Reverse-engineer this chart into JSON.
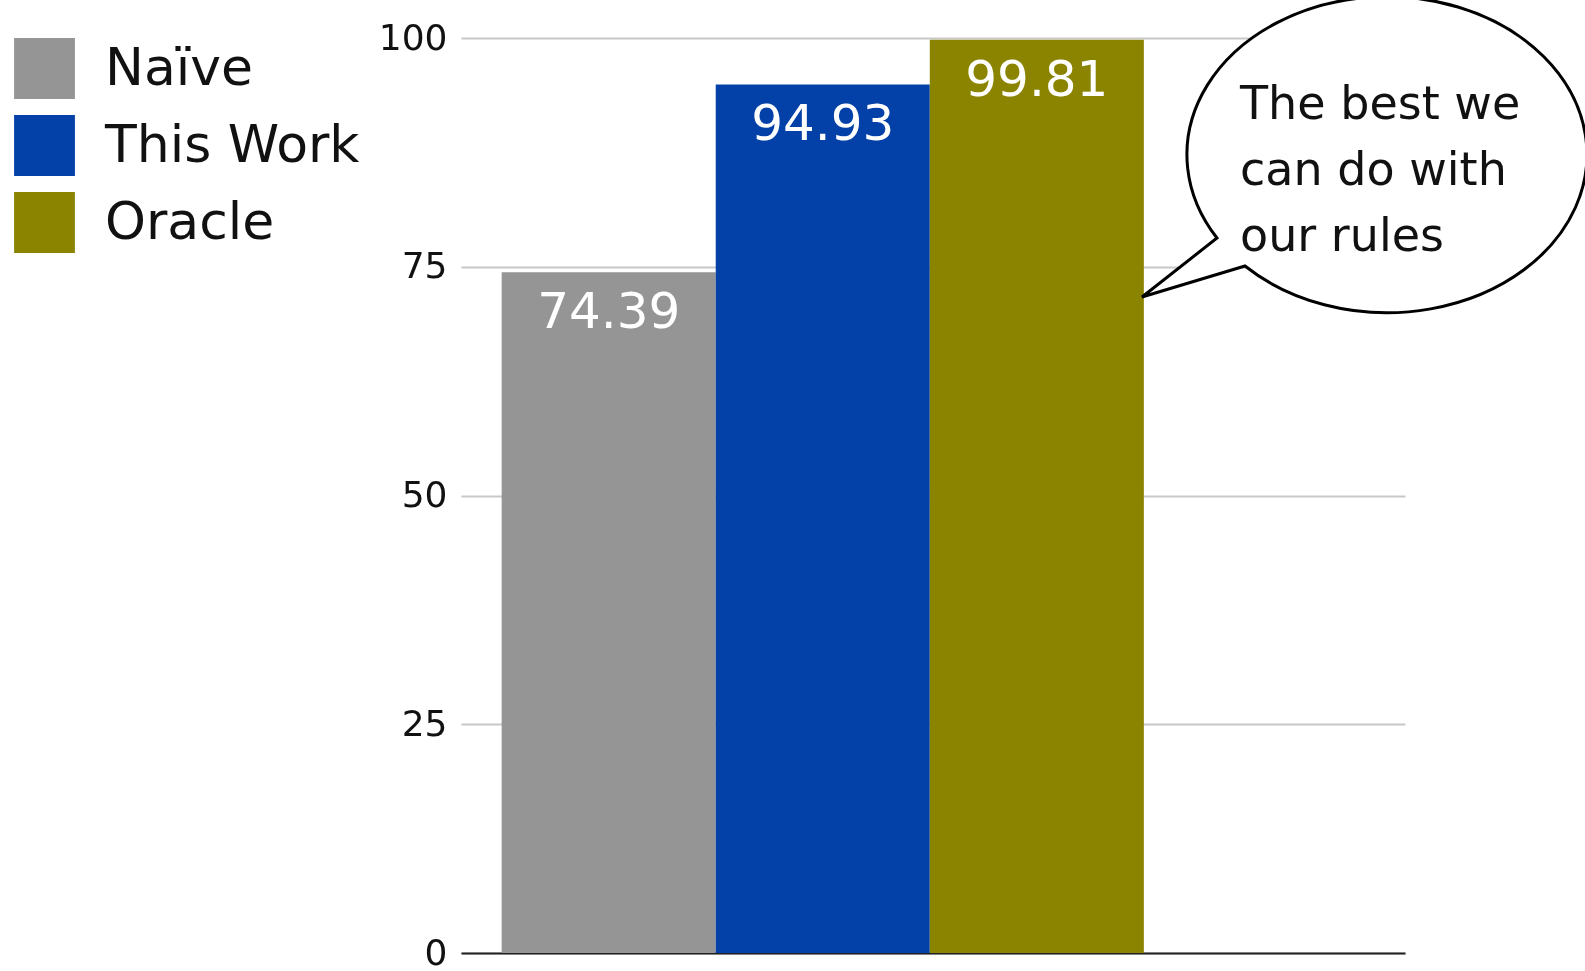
{
  "chart_data": {
    "type": "bar",
    "categories": [
      null
    ],
    "series": [
      {
        "name": "Naïve",
        "color": "#959595",
        "values": [
          74.39
        ]
      },
      {
        "name": "This Work",
        "color": "#0340a8",
        "values": [
          94.93
        ]
      },
      {
        "name": "Oracle",
        "color": "#8b8400",
        "values": [
          99.81
        ]
      }
    ],
    "ylim": [
      0,
      100
    ],
    "yticks": [
      0,
      25,
      50,
      75,
      100
    ],
    "grid": "y",
    "legend": "top left",
    "data_labels": true,
    "annotations": [
      "The best we can do with our rules"
    ]
  }
}
